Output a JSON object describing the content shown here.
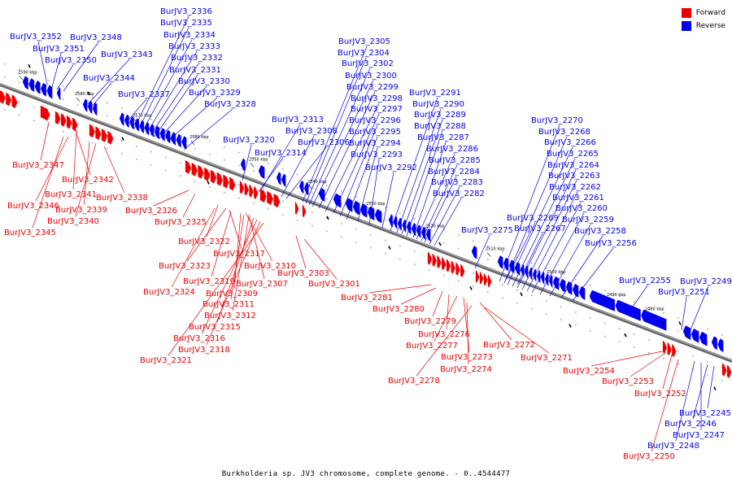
{
  "caption": "Burkholderia sp. JV3 chromosome, complete genome. - 0..4544477",
  "legend": {
    "forward_label": "Forward",
    "reverse_label": "Reverse",
    "forward_color": "#ee0000",
    "reverse_color": "#0000ee"
  },
  "ticks": [
    "2590 kbp",
    "2580 kbp",
    "2570 kbp",
    "2560 kbp",
    "2550 kbp",
    "2540 kbp",
    "2530 kbp",
    "2520 kbp",
    "2510 kbp",
    "2500 kbp",
    "2490 kbp",
    "2480 kbp"
  ],
  "reverse_labels": [
    "BurJV3_2352",
    "BurJV3_2351",
    "BurJV3_2350",
    "BurJV3_2348",
    "BurJV3_2343",
    "BurJV3_2344",
    "BurJV3_2337",
    "BurJV3_2336",
    "BurJV3_2335",
    "BurJV3_2334",
    "BurJV3_2333",
    "BurJV3_2332",
    "BurJV3_2331",
    "BurJV3_2330",
    "BurJV3_2329",
    "BurJV3_2328",
    "BurJV3_2320",
    "BurJV3_2313",
    "BurJV3_2314",
    "BurJV3_2308",
    "BurJV3_2306",
    "BurJV3_2305",
    "BurJV3_2304",
    "BurJV3_2302",
    "BurJV3_2300",
    "BurJV3_2299",
    "BurJV3_2298",
    "BurJV3_2297",
    "BurJV3_2296",
    "BurJV3_2295",
    "BurJV3_2294",
    "BurJV3_2293",
    "BurJV3_2292",
    "BurJV3_2291",
    "BurJV3_2290",
    "BurJV3_2289",
    "BurJV3_2288",
    "BurJV3_2287",
    "BurJV3_2286",
    "BurJV3_2285",
    "BurJV3_2284",
    "BurJV3_2283",
    "BurJV3_2282",
    "BurJV3_2275",
    "BurJV3_2270",
    "BurJV3_2268",
    "BurJV3_2266",
    "BurJV3_2265",
    "BurJV3_2264",
    "BurJV3_2263",
    "BurJV3_2262",
    "BurJV3_2261",
    "BurJV3_2260",
    "BurJV3_2269",
    "BurJV3_2259",
    "BurJV3_2267",
    "BurJV3_2258",
    "BurJV3_2256",
    "BurJV3_2255",
    "BurJV3_2249",
    "BurJV3_2251",
    "BurJV3_2245",
    "BurJV3_2246",
    "BurJV3_2247",
    "BurJV3_2248"
  ],
  "forward_labels": [
    "BurJV3_2347",
    "BurJV3_2342",
    "BurJV3_2341",
    "BurJV3_2338",
    "BurJV3_2346",
    "BurJV3_2339",
    "BurJV3_2340",
    "BurJV3_2345",
    "BurJV3_2326",
    "BurJV3_2325",
    "BurJV3_2322",
    "BurJV3_2317",
    "BurJV3_2323",
    "BurJV3_2310",
    "BurJV3_2319",
    "BurJV3_2307",
    "BurJV3_2324",
    "BurJV3_2309",
    "BurJV3_2311",
    "BurJV3_2312",
    "BurJV3_2315",
    "BurJV3_2316",
    "BurJV3_2318",
    "BurJV3_2321",
    "BurJV3_2303",
    "BurJV3_2301",
    "BurJV3_2281",
    "BurJV3_2280",
    "BurJV3_2279",
    "BurJV3_2276",
    "BurJV3_2277",
    "BurJV3_2273",
    "BurJV3_2272",
    "BurJV3_2271",
    "BurJV3_2274",
    "BurJV3_2278",
    "BurJV3_2254",
    "BurJV3_2253",
    "BurJV3_2252",
    "BurJV3_2250"
  ]
}
